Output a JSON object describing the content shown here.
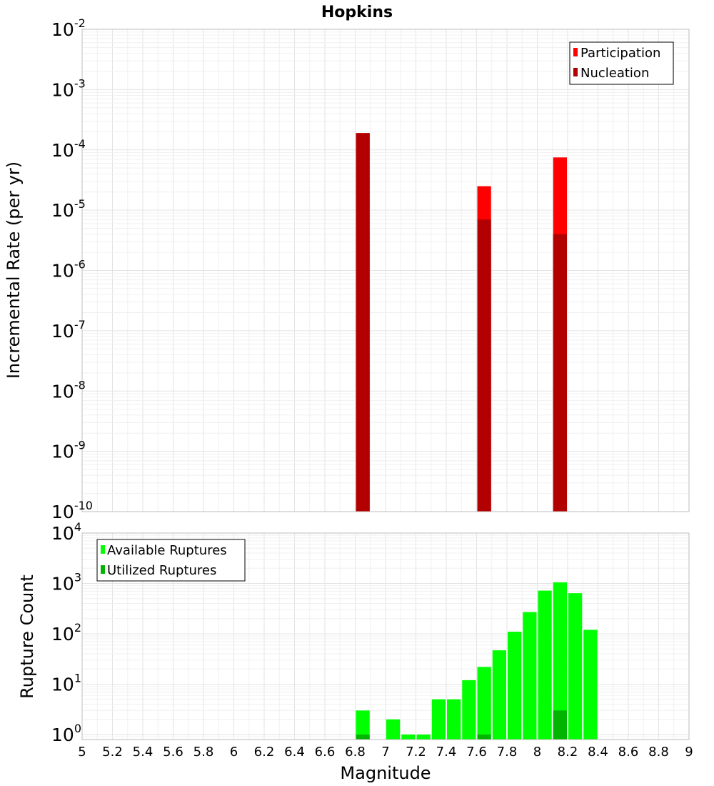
{
  "chart_data": [
    {
      "type": "bar",
      "title": "Hopkins",
      "xlabel": "",
      "ylabel": "Incremental Rate (per yr)",
      "yscale": "log",
      "xlim": [
        5,
        9
      ],
      "ylim_exp": [
        -10,
        -2
      ],
      "bin_width": 0.1,
      "series": [
        {
          "name": "Participation",
          "color": "#ff0000",
          "x": [
            6.85,
            7.65,
            8.15
          ],
          "values": [
            0.00019,
            2.5e-05,
            7.5e-05
          ]
        },
        {
          "name": "Nucleation",
          "color": "#b20000",
          "x": [
            6.85,
            7.65,
            8.15
          ],
          "values": [
            0.00019,
            7e-06,
            4e-06
          ]
        }
      ],
      "legend": "top-right"
    },
    {
      "type": "bar",
      "title": "",
      "xlabel": "Magnitude",
      "ylabel": "Rupture Count",
      "yscale": "log",
      "xlim": [
        5,
        9
      ],
      "ylim_exp": [
        -0.1,
        4
      ],
      "bin_width": 0.1,
      "series": [
        {
          "name": "Available Ruptures",
          "color": "#00ff00",
          "x": [
            6.85,
            7.05,
            7.15,
            7.25,
            7.35,
            7.45,
            7.55,
            7.65,
            7.75,
            7.85,
            7.95,
            8.05,
            8.15,
            8.25,
            8.35
          ],
          "values": [
            3,
            2,
            1,
            1,
            5,
            5,
            12,
            22,
            47,
            110,
            270,
            720,
            1050,
            640,
            120
          ]
        },
        {
          "name": "Utilized Ruptures",
          "color": "#00b400",
          "x": [
            6.85,
            7.65,
            8.15
          ],
          "values": [
            1,
            1,
            3
          ]
        }
      ],
      "legend": "top-left"
    }
  ],
  "x_ticks": [
    "5",
    "5.2",
    "5.4",
    "5.6",
    "5.8",
    "6",
    "6.2",
    "6.4",
    "6.6",
    "6.8",
    "7",
    "7.2",
    "7.4",
    "7.6",
    "7.8",
    "8",
    "8.2",
    "8.4",
    "8.6",
    "8.8",
    "9"
  ],
  "top_y_ticks": [
    {
      "base": "10",
      "exp": "-2"
    },
    {
      "base": "10",
      "exp": "-3"
    },
    {
      "base": "10",
      "exp": "-4"
    },
    {
      "base": "10",
      "exp": "-5"
    },
    {
      "base": "10",
      "exp": "-6"
    },
    {
      "base": "10",
      "exp": "-7"
    },
    {
      "base": "10",
      "exp": "-8"
    },
    {
      "base": "10",
      "exp": "-9"
    },
    {
      "base": "10",
      "exp": "-10"
    }
  ],
  "bottom_y_ticks": [
    {
      "base": "10",
      "exp": "4"
    },
    {
      "base": "10",
      "exp": "3"
    },
    {
      "base": "10",
      "exp": "2"
    },
    {
      "base": "10",
      "exp": "1"
    },
    {
      "base": "10",
      "exp": "0"
    }
  ]
}
